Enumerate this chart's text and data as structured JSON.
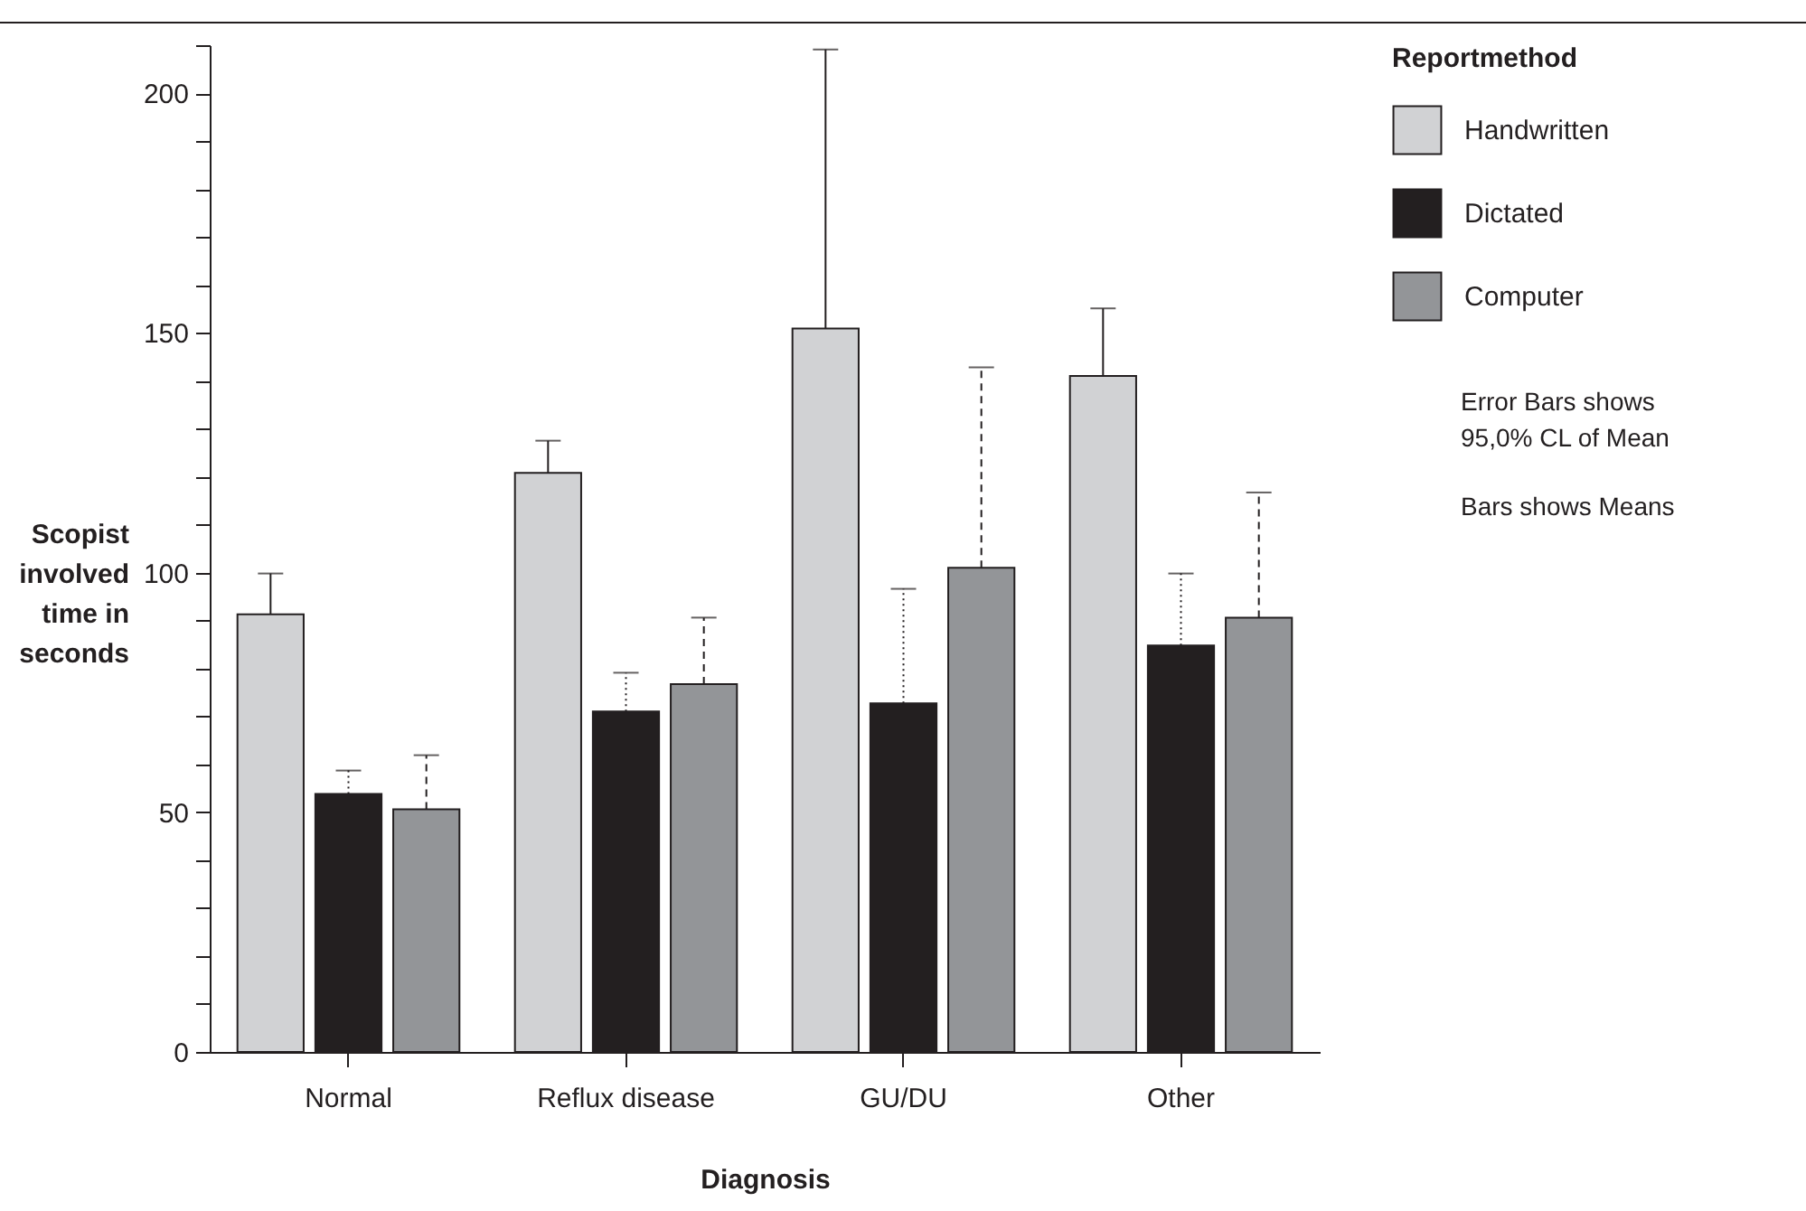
{
  "chart_data": {
    "type": "bar",
    "xlabel": "Diagnosis",
    "ylabel": "Scopist involved time in seconds",
    "legend_title": "Reportmethod",
    "legend": "top right",
    "grid": false,
    "categories": [
      "Normal",
      "Reflux disease",
      "GU/DU",
      "Other"
    ],
    "series": [
      {
        "name": "Handwritten",
        "color": "#d1d2d4",
        "line_style": "solid",
        "values": [
          91.3,
          120.8,
          150.9,
          141.0
        ],
        "errors": [
          8.5,
          6.7,
          58.2,
          14.1
        ]
      },
      {
        "name": "Dictated",
        "color": "#231f20",
        "line_style": "dotted",
        "values": [
          53.8,
          71.0,
          72.7,
          84.8
        ],
        "errors": [
          4.9,
          8.1,
          23.9,
          15.0
        ]
      },
      {
        "name": "Computer",
        "color": "#939598",
        "line_style": "dashed",
        "values": [
          50.6,
          76.7,
          101.0,
          90.6
        ],
        "errors": [
          11.3,
          13.9,
          41.8,
          26.1
        ]
      }
    ],
    "ylim": [
      0,
      210
    ],
    "yticks": [
      0,
      {
        "value": 10,
        "label": null
      },
      {
        "value": 20,
        "label": null
      },
      {
        "value": 30,
        "label": null
      },
      {
        "value": 40,
        "label": null
      },
      50,
      {
        "value": 60,
        "label": null
      },
      {
        "value": 70,
        "label": null
      },
      {
        "value": 80,
        "label": null
      },
      {
        "value": 90,
        "label": null
      },
      100,
      {
        "value": 110,
        "label": null
      },
      {
        "value": 120,
        "label": null
      },
      {
        "value": 130,
        "label": null
      },
      {
        "value": 140,
        "label": null
      },
      150,
      {
        "value": 160,
        "label": null
      },
      {
        "value": 170,
        "label": null
      },
      {
        "value": 180,
        "label": null
      },
      {
        "value": 190,
        "label": null
      },
      200,
      {
        "value": 210,
        "label": null
      }
    ],
    "annotations": [
      "Error Bars shows 95,0% CL of Mean",
      "Bars shows Means"
    ]
  }
}
